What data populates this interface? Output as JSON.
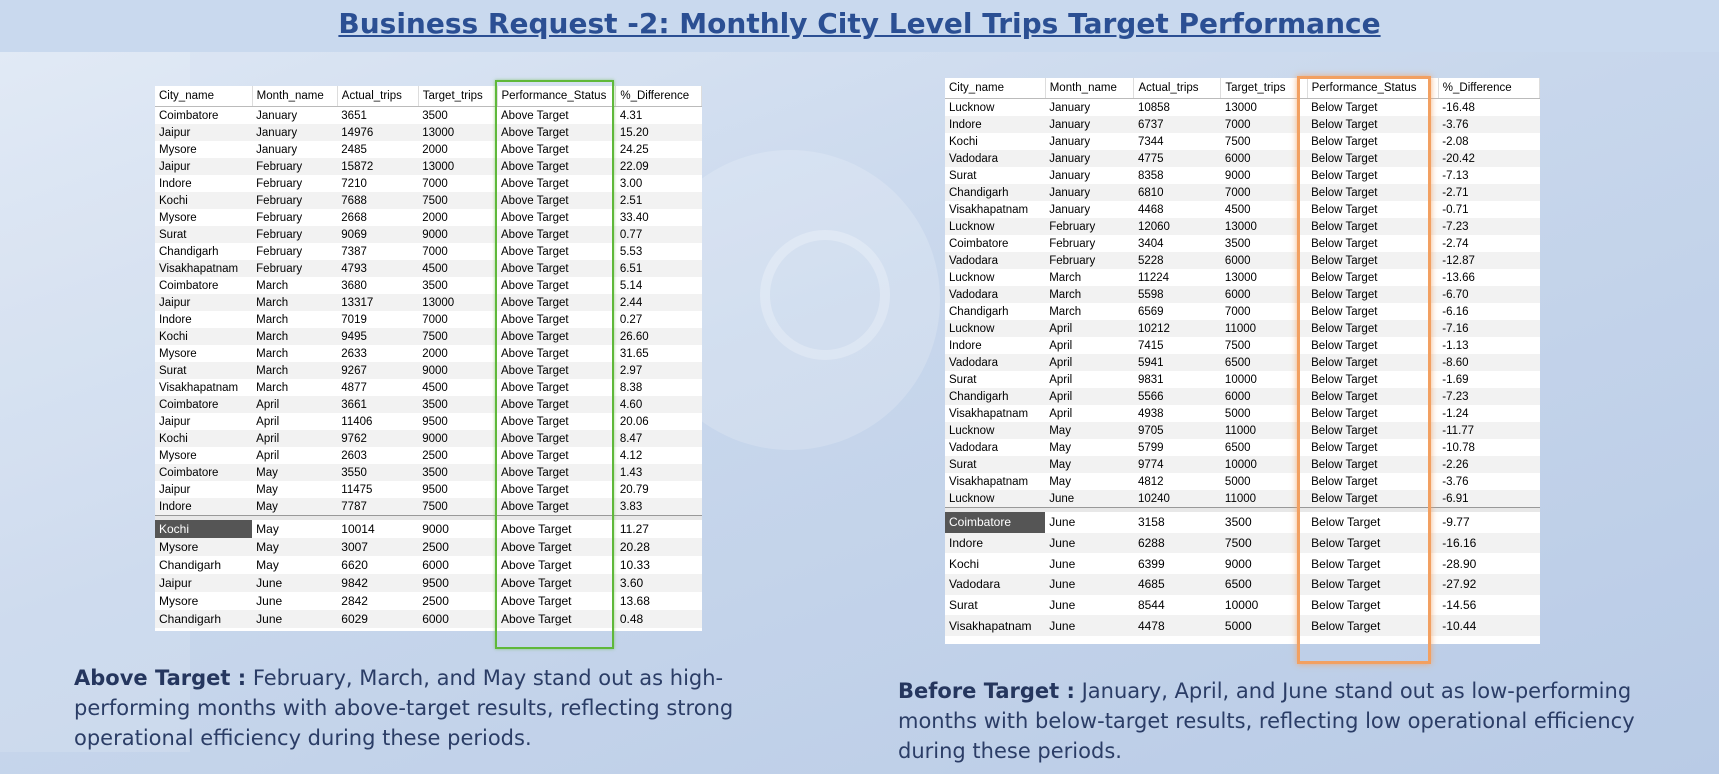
{
  "title": "Business Request -2: Monthly City Level Trips Target Performance",
  "columns": [
    "City_name",
    "Month_name",
    "Actual_trips",
    "Target_trips",
    "Performance_Status",
    "%_Difference"
  ],
  "left_top_rows": [
    [
      "Coimbatore",
      "January",
      "3651",
      "3500",
      "Above Target",
      "4.31"
    ],
    [
      "Jaipur",
      "January",
      "14976",
      "13000",
      "Above Target",
      "15.20"
    ],
    [
      "Mysore",
      "January",
      "2485",
      "2000",
      "Above Target",
      "24.25"
    ],
    [
      "Jaipur",
      "February",
      "15872",
      "13000",
      "Above Target",
      "22.09"
    ],
    [
      "Indore",
      "February",
      "7210",
      "7000",
      "Above Target",
      "3.00"
    ],
    [
      "Kochi",
      "February",
      "7688",
      "7500",
      "Above Target",
      "2.51"
    ],
    [
      "Mysore",
      "February",
      "2668",
      "2000",
      "Above Target",
      "33.40"
    ],
    [
      "Surat",
      "February",
      "9069",
      "9000",
      "Above Target",
      "0.77"
    ],
    [
      "Chandigarh",
      "February",
      "7387",
      "7000",
      "Above Target",
      "5.53"
    ],
    [
      "Visakhapatnam",
      "February",
      "4793",
      "4500",
      "Above Target",
      "6.51"
    ],
    [
      "Coimbatore",
      "March",
      "3680",
      "3500",
      "Above Target",
      "5.14"
    ],
    [
      "Jaipur",
      "March",
      "13317",
      "13000",
      "Above Target",
      "2.44"
    ],
    [
      "Indore",
      "March",
      "7019",
      "7000",
      "Above Target",
      "0.27"
    ],
    [
      "Kochi",
      "March",
      "9495",
      "7500",
      "Above Target",
      "26.60"
    ],
    [
      "Mysore",
      "March",
      "2633",
      "2000",
      "Above Target",
      "31.65"
    ],
    [
      "Surat",
      "March",
      "9267",
      "9000",
      "Above Target",
      "2.97"
    ],
    [
      "Visakhapatnam",
      "March",
      "4877",
      "4500",
      "Above Target",
      "8.38"
    ],
    [
      "Coimbatore",
      "April",
      "3661",
      "3500",
      "Above Target",
      "4.60"
    ],
    [
      "Jaipur",
      "April",
      "11406",
      "9500",
      "Above Target",
      "20.06"
    ],
    [
      "Kochi",
      "April",
      "9762",
      "9000",
      "Above Target",
      "8.47"
    ],
    [
      "Mysore",
      "April",
      "2603",
      "2500",
      "Above Target",
      "4.12"
    ],
    [
      "Coimbatore",
      "May",
      "3550",
      "3500",
      "Above Target",
      "1.43"
    ],
    [
      "Jaipur",
      "May",
      "11475",
      "9500",
      "Above Target",
      "20.79"
    ],
    [
      "Indore",
      "May",
      "7787",
      "7500",
      "Above Target",
      "3.83"
    ]
  ],
  "left_bottom_rows": [
    [
      "Kochi",
      "May",
      "10014",
      "9000",
      "Above Target",
      "11.27"
    ],
    [
      "Mysore",
      "May",
      "3007",
      "2500",
      "Above Target",
      "20.28"
    ],
    [
      "Chandigarh",
      "May",
      "6620",
      "6000",
      "Above Target",
      "10.33"
    ],
    [
      "Jaipur",
      "June",
      "9842",
      "9500",
      "Above Target",
      "3.60"
    ],
    [
      "Mysore",
      "June",
      "2842",
      "2500",
      "Above Target",
      "13.68"
    ],
    [
      "Chandigarh",
      "June",
      "6029",
      "6000",
      "Above Target",
      "0.48"
    ]
  ],
  "right_top_rows": [
    [
      "Lucknow",
      "January",
      "10858",
      "13000",
      "Below Target",
      "-16.48"
    ],
    [
      "Indore",
      "January",
      "6737",
      "7000",
      "Below Target",
      "-3.76"
    ],
    [
      "Kochi",
      "January",
      "7344",
      "7500",
      "Below Target",
      "-2.08"
    ],
    [
      "Vadodara",
      "January",
      "4775",
      "6000",
      "Below Target",
      "-20.42"
    ],
    [
      "Surat",
      "January",
      "8358",
      "9000",
      "Below Target",
      "-7.13"
    ],
    [
      "Chandigarh",
      "January",
      "6810",
      "7000",
      "Below Target",
      "-2.71"
    ],
    [
      "Visakhapatnam",
      "January",
      "4468",
      "4500",
      "Below Target",
      "-0.71"
    ],
    [
      "Lucknow",
      "February",
      "12060",
      "13000",
      "Below Target",
      "-7.23"
    ],
    [
      "Coimbatore",
      "February",
      "3404",
      "3500",
      "Below Target",
      "-2.74"
    ],
    [
      "Vadodara",
      "February",
      "5228",
      "6000",
      "Below Target",
      "-12.87"
    ],
    [
      "Lucknow",
      "March",
      "11224",
      "13000",
      "Below Target",
      "-13.66"
    ],
    [
      "Vadodara",
      "March",
      "5598",
      "6000",
      "Below Target",
      "-6.70"
    ],
    [
      "Chandigarh",
      "March",
      "6569",
      "7000",
      "Below Target",
      "-6.16"
    ],
    [
      "Lucknow",
      "April",
      "10212",
      "11000",
      "Below Target",
      "-7.16"
    ],
    [
      "Indore",
      "April",
      "7415",
      "7500",
      "Below Target",
      "-1.13"
    ],
    [
      "Vadodara",
      "April",
      "5941",
      "6500",
      "Below Target",
      "-8.60"
    ],
    [
      "Surat",
      "April",
      "9831",
      "10000",
      "Below Target",
      "-1.69"
    ],
    [
      "Chandigarh",
      "April",
      "5566",
      "6000",
      "Below Target",
      "-7.23"
    ],
    [
      "Visakhapatnam",
      "April",
      "4938",
      "5000",
      "Below Target",
      "-1.24"
    ],
    [
      "Lucknow",
      "May",
      "9705",
      "11000",
      "Below Target",
      "-11.77"
    ],
    [
      "Vadodara",
      "May",
      "5799",
      "6500",
      "Below Target",
      "-10.78"
    ],
    [
      "Surat",
      "May",
      "9774",
      "10000",
      "Below Target",
      "-2.26"
    ],
    [
      "Visakhapatnam",
      "May",
      "4812",
      "5000",
      "Below Target",
      "-3.76"
    ],
    [
      "Lucknow",
      "June",
      "10240",
      "11000",
      "Below Target",
      "-6.91"
    ]
  ],
  "right_bottom_rows": [
    [
      "Coimbatore",
      "June",
      "3158",
      "3500",
      "Below Target",
      "-9.77"
    ],
    [
      "Indore",
      "June",
      "6288",
      "7500",
      "Below Target",
      "-16.16"
    ],
    [
      "Kochi",
      "June",
      "6399",
      "9000",
      "Below Target",
      "-28.90"
    ],
    [
      "Vadodara",
      "June",
      "4685",
      "6500",
      "Below Target",
      "-27.92"
    ],
    [
      "Surat",
      "June",
      "8544",
      "10000",
      "Below Target",
      "-14.56"
    ],
    [
      "Visakhapatnam",
      "June",
      "4478",
      "5000",
      "Below Target",
      "-10.44"
    ]
  ],
  "notes": {
    "left_label": "Above Target :",
    "left_text": "February, March, and May stand out as high-performing months with above-target results, reflecting strong operational efficiency during these periods.",
    "right_label": "Before Target :",
    "right_text": "January, April, and June stand out as low-performing months with below-target results, reflecting low operational efficiency during these periods."
  },
  "colors": {
    "title": "#2b4f93",
    "above_highlight": "#5fb83a",
    "below_highlight": "#f2a061"
  }
}
